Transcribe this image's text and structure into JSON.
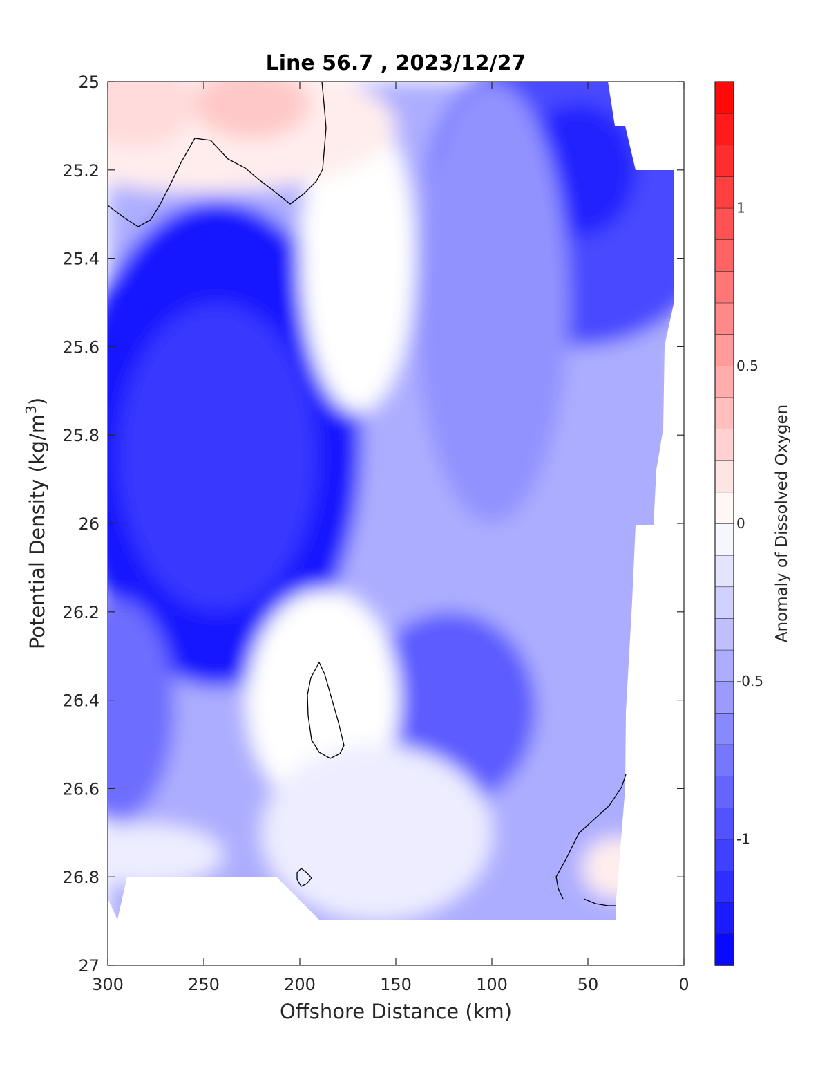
{
  "chart_data": {
    "type": "heatmap",
    "title": "Line 56.7 , 2023/12/27",
    "xlabel": "Offshore Distance (km)",
    "ylabel_main": "Potential Density (kg/m",
    "ylabel_sup": "3",
    "ylabel_close": ")",
    "xlim": [
      300,
      0
    ],
    "x_reversed": true,
    "ylim": [
      25,
      27
    ],
    "y_reversed": true,
    "xticks": [
      300,
      250,
      200,
      150,
      100,
      50,
      0
    ],
    "xtick_labels": [
      "300",
      "250",
      "200",
      "150",
      "100",
      "50",
      "0"
    ],
    "yticks": [
      25,
      25.2,
      25.4,
      25.6,
      25.8,
      26,
      26.2,
      26.4,
      26.6,
      26.8,
      27
    ],
    "ytick_labels": [
      "25",
      "25.2",
      "25.4",
      "25.6",
      "25.8",
      "26",
      "26.2",
      "26.4",
      "26.6",
      "26.8",
      "27"
    ],
    "colorbar": {
      "label": "Anomaly of Dissolved Oxygen",
      "range": [
        -1.4,
        1.4
      ],
      "level_step": 0.1,
      "ticks": [
        1,
        0.5,
        0,
        -0.5,
        -1
      ],
      "tick_labels": [
        "1",
        "0.5",
        "0",
        "-0.5",
        "-1"
      ],
      "colormap": "blue-white-red",
      "negative_color": "#0000ff",
      "zero_color": "#ffffff",
      "positive_color": "#ff0000"
    },
    "contour_line": 0,
    "grid": false,
    "approximate_field": {
      "description_of_features": "minimum anomaly ≈ -1.3 near 245 km, 25.8; positive anomalies ≈ +0.2 near surface at 230-300 km and near 35 km, 26.8",
      "features": [
        {
          "x": 243,
          "y": 25.82,
          "value": -1.3
        },
        {
          "x": 55,
          "y": 25.2,
          "value": -1.2
        },
        {
          "x": 122,
          "y": 26.42,
          "value": -0.95
        },
        {
          "x": 295,
          "y": 26.42,
          "value": -0.8
        },
        {
          "x": 225,
          "y": 25.05,
          "value": 0.25
        },
        {
          "x": 280,
          "y": 25.05,
          "value": 0.2
        },
        {
          "x": 35,
          "y": 26.8,
          "value": 0.15
        },
        {
          "x": 188,
          "y": 26.4,
          "value": 0.05
        }
      ]
    }
  }
}
